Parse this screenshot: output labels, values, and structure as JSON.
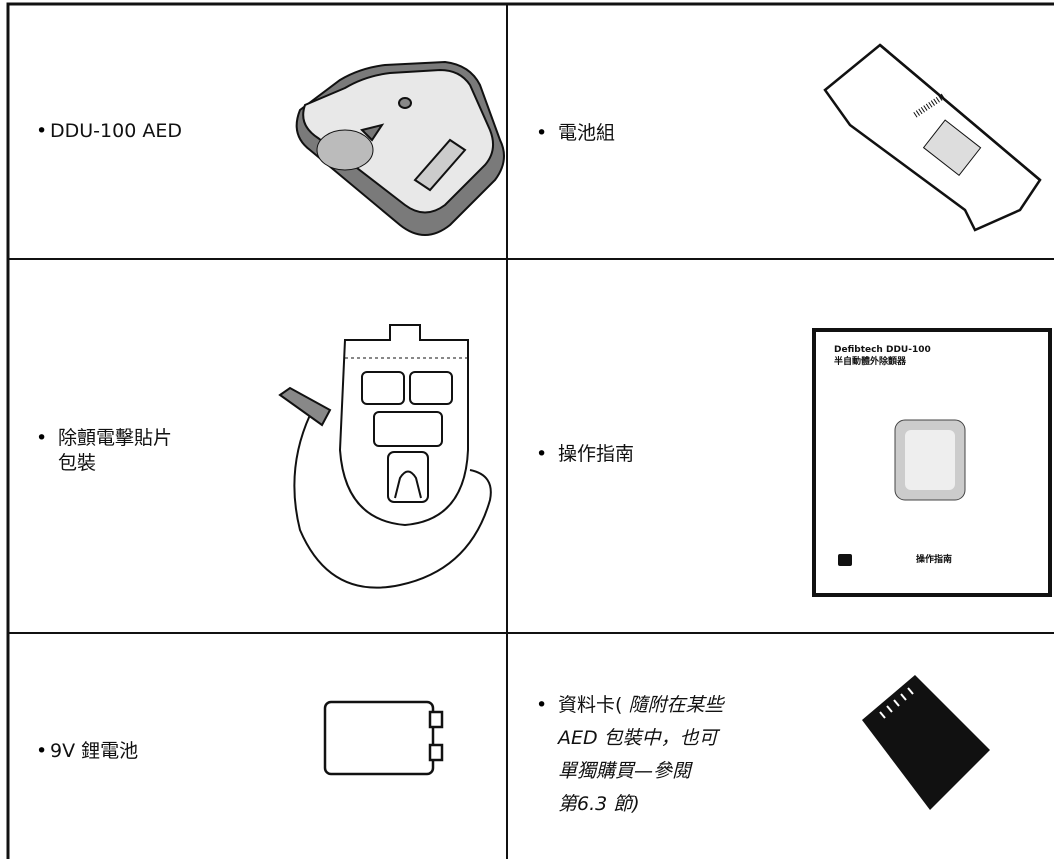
{
  "table": {
    "rows": [
      [
        {
          "lines": [
            "DDU-100 AED"
          ]
        },
        {
          "lines": [
            "電池組"
          ]
        }
      ],
      [
        {
          "lines": [
            "除顫電擊貼片",
            "包裝"
          ]
        },
        {
          "lines": [
            "操作指南"
          ]
        }
      ],
      [
        {
          "lines": [
            "9V 鋰電池"
          ]
        },
        {
          "prefix": "資料卡(",
          "italic_lines": [
            "隨附在某些",
            "AED 包裝中，也可",
            "單獨購買—參閱",
            "第6.3 節)"
          ]
        }
      ]
    ]
  },
  "manual_cover": {
    "title": "Defibtech DDU-100",
    "subtitle": "半自動體外除顫器",
    "footer": "操作指南"
  }
}
